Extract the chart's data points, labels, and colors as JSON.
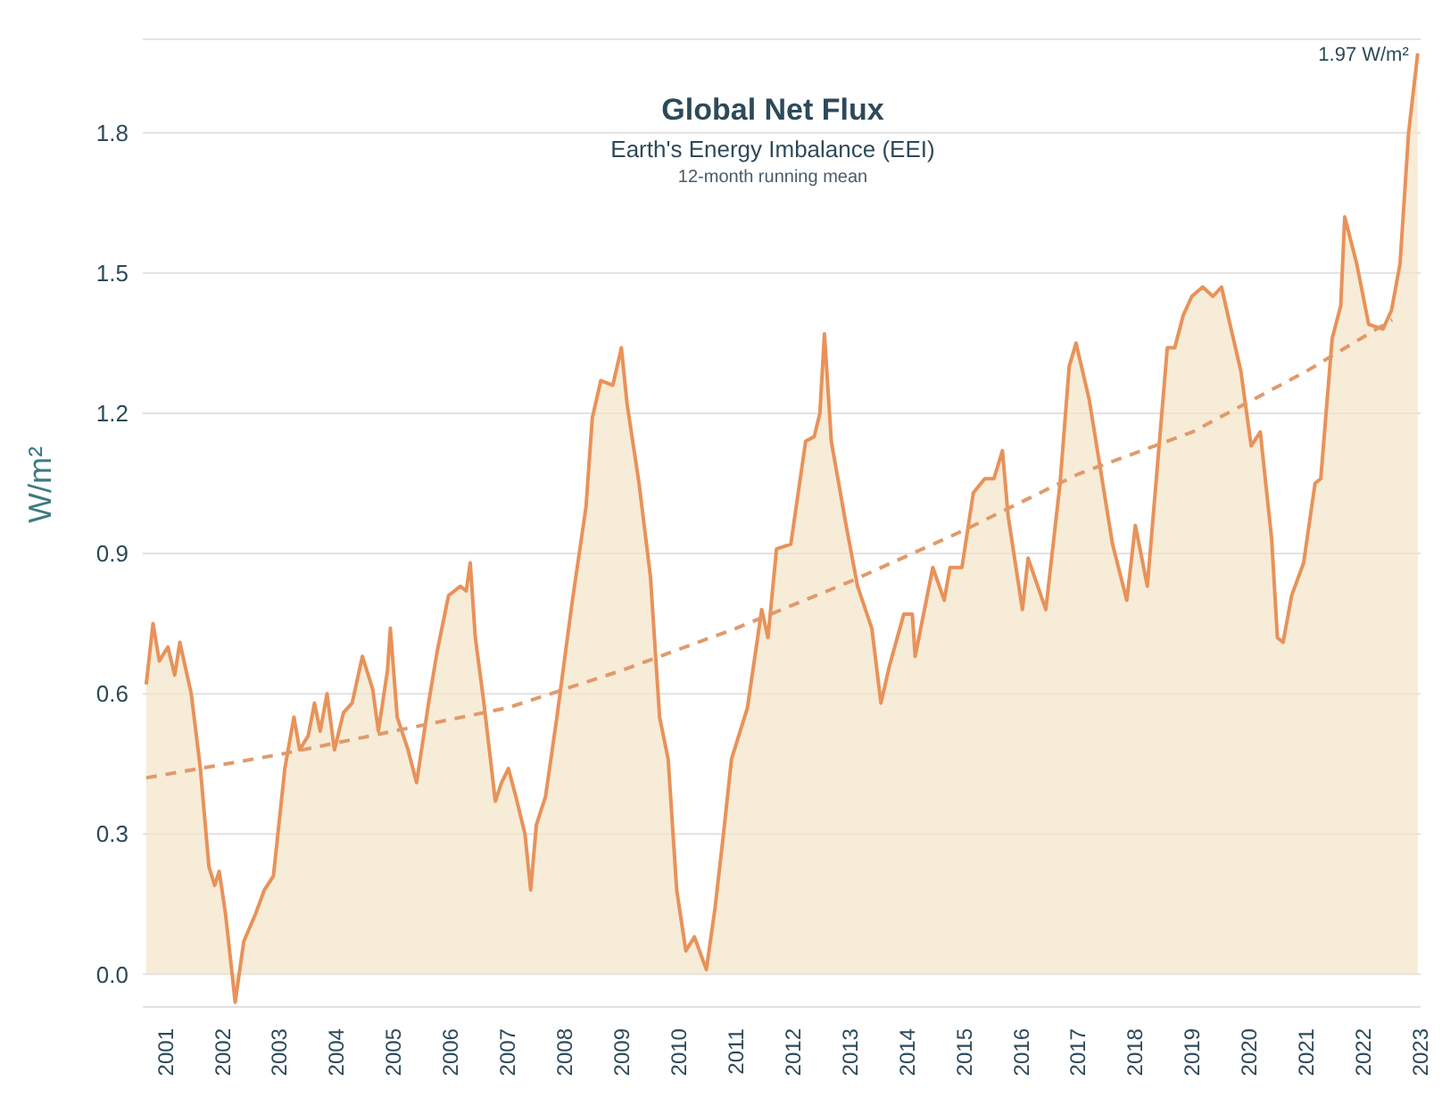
{
  "chart_data": {
    "type": "area",
    "title": "Global Net Flux",
    "subtitle": "Earth's Energy Imbalance (EEI)",
    "ylabel": "W/m²",
    "annotations": [
      "12-month running mean",
      {
        "text": "1.97 W/m²",
        "x": 2022.95,
        "y": 1.97
      }
    ],
    "xlim": [
      2000.6,
      2023
    ],
    "xticks": [
      2001,
      2002,
      2003,
      2004,
      2005,
      2006,
      2007,
      2008,
      2009,
      2010,
      2011,
      2012,
      2013,
      2014,
      2015,
      2016,
      2017,
      2018,
      2019,
      2020,
      2021,
      2022,
      2023
    ],
    "ylim": [
      -0.07,
      2.0
    ],
    "yticks": [
      {
        "value": 0,
        "label": "0.0"
      },
      0.3,
      0.6,
      0.9,
      1.2,
      1.5,
      1.8
    ],
    "grid": "y",
    "legend": false,
    "marker": "none",
    "series": [
      {
        "color": "#e8925a",
        "line_style": "solid",
        "x": [
          2000.66,
          2000.78,
          2000.89,
          2001.04,
          2001.16,
          2001.25,
          2001.45,
          2001.61,
          2001.76,
          2001.86,
          2001.94,
          2002.05,
          2002.22,
          2002.37,
          2002.58,
          2002.73,
          2002.89,
          2003.09,
          2003.25,
          2003.35,
          2003.5,
          2003.61,
          2003.71,
          2003.83,
          2003.96,
          2004.12,
          2004.27,
          2004.45,
          2004.63,
          2004.73,
          2004.89,
          2004.94,
          2005.06,
          2005.25,
          2005.4,
          2005.61,
          2005.76,
          2005.96,
          2006.17,
          2006.27,
          2006.34,
          2006.43,
          2006.58,
          2006.78,
          2006.89,
          2007.01,
          2007.14,
          2007.3,
          2007.4,
          2007.5,
          2007.66,
          2007.86,
          2008.12,
          2008.37,
          2008.48,
          2008.63,
          2008.84,
          2008.99,
          2009.09,
          2009.3,
          2009.5,
          2009.66,
          2009.81,
          2009.96,
          2010.12,
          2010.27,
          2010.48,
          2010.63,
          2010.78,
          2010.92,
          2011.2,
          2011.45,
          2011.56,
          2011.71,
          2011.96,
          2012.22,
          2012.37,
          2012.47,
          2012.55,
          2012.67,
          2012.93,
          2013.13,
          2013.38,
          2013.54,
          2013.69,
          2013.94,
          2014.09,
          2014.14,
          2014.45,
          2014.65,
          2014.75,
          2014.96,
          2015.16,
          2015.36,
          2015.52,
          2015.67,
          2015.77,
          2016.02,
          2016.12,
          2016.43,
          2016.68,
          2016.84,
          2016.96,
          2017.19,
          2017.6,
          2017.85,
          2018.0,
          2018.21,
          2018.56,
          2018.69,
          2018.84,
          2018.99,
          2019.18,
          2019.36,
          2019.51,
          2019.66,
          2019.85,
          2020.03,
          2020.19,
          2020.39,
          2020.49,
          2020.59,
          2020.74,
          2020.95,
          2021.15,
          2021.25,
          2021.45,
          2021.6,
          2021.67,
          2021.88,
          2022.09,
          2022.34,
          2022.49,
          2022.64,
          2022.79,
          2022.95
        ],
        "values": [
          0.62,
          0.75,
          0.67,
          0.7,
          0.64,
          0.71,
          0.6,
          0.44,
          0.23,
          0.19,
          0.22,
          0.13,
          -0.06,
          0.07,
          0.13,
          0.18,
          0.21,
          0.44,
          0.55,
          0.48,
          0.51,
          0.58,
          0.52,
          0.6,
          0.48,
          0.56,
          0.58,
          0.68,
          0.61,
          0.52,
          0.65,
          0.74,
          0.55,
          0.48,
          0.41,
          0.58,
          0.69,
          0.81,
          0.83,
          0.82,
          0.88,
          0.72,
          0.58,
          0.37,
          0.41,
          0.44,
          0.38,
          0.3,
          0.18,
          0.32,
          0.38,
          0.55,
          0.79,
          1.0,
          1.19,
          1.27,
          1.26,
          1.34,
          1.22,
          1.05,
          0.85,
          0.55,
          0.46,
          0.18,
          0.05,
          0.08,
          0.01,
          0.14,
          0.3,
          0.46,
          0.57,
          0.78,
          0.72,
          0.91,
          0.92,
          1.14,
          1.15,
          1.2,
          1.37,
          1.14,
          0.96,
          0.83,
          0.74,
          0.58,
          0.66,
          0.77,
          0.77,
          0.68,
          0.87,
          0.8,
          0.87,
          0.87,
          1.03,
          1.06,
          1.06,
          1.12,
          0.98,
          0.78,
          0.89,
          0.78,
          1.05,
          1.3,
          1.35,
          1.23,
          0.92,
          0.8,
          0.96,
          0.83,
          1.34,
          1.34,
          1.41,
          1.45,
          1.47,
          1.45,
          1.47,
          1.39,
          1.29,
          1.13,
          1.16,
          0.93,
          0.72,
          0.71,
          0.81,
          0.88,
          1.05,
          1.06,
          1.36,
          1.43,
          1.62,
          1.52,
          1.39,
          1.38,
          1.42,
          1.52,
          1.8,
          1.97
        ]
      },
      {
        "type": "line",
        "color": "#e09a6a",
        "line_style": "dashed",
        "x": [
          2000.66,
          2003,
          2005,
          2007,
          2009,
          2011,
          2013,
          2015,
          2017,
          2019,
          2021,
          2022.5
        ],
        "values": [
          0.42,
          0.47,
          0.52,
          0.57,
          0.65,
          0.74,
          0.84,
          0.95,
          1.07,
          1.16,
          1.29,
          1.4
        ]
      }
    ]
  }
}
